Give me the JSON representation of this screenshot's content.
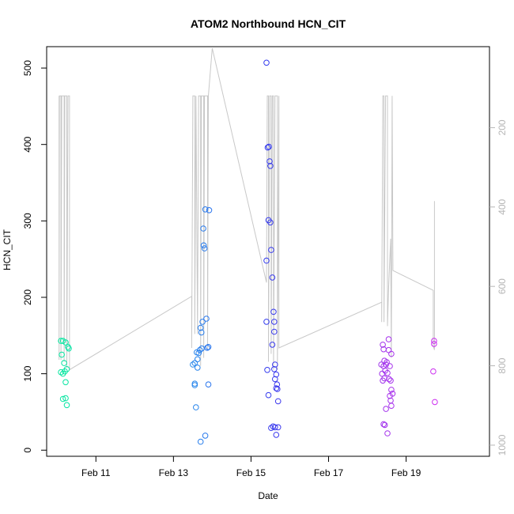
{
  "chart_data": {
    "type": "scatter",
    "title": "ATOM2 Northbound HCN_CIT",
    "xlabel": "Date",
    "ylabel": "HCN_CIT",
    "x_ticks": [
      "Feb 11",
      "Feb 13",
      "Feb 15",
      "Feb 17",
      "Feb 19"
    ],
    "x_tick_values": [
      11,
      13,
      15,
      17,
      19
    ],
    "y_ticks": [
      "0",
      "100",
      "200",
      "300",
      "400",
      "500"
    ],
    "y_tick_values": [
      0,
      100,
      200,
      300,
      400,
      500
    ],
    "xlim": [
      9.73,
      21.15
    ],
    "ylim": [
      -8,
      528
    ],
    "y2_axis": {
      "ticks": [
        "200",
        "400",
        "600",
        "800",
        "1000"
      ],
      "tick_values": [
        200,
        400,
        600,
        800,
        1000
      ],
      "lim": [
        -4,
        1028
      ],
      "reversed": true,
      "color": "#b5b5b5"
    },
    "grid": false,
    "legend": "none",
    "point_style": "open-circle",
    "color_scale": [
      "#00e89a",
      "#2fc3e8",
      "#1f3cf0",
      "#7c34e8",
      "#cf2ef0"
    ],
    "line_color": "#c8c8c8",
    "points": [
      {
        "x": 10.1,
        "y": 143
      },
      {
        "x": 10.15,
        "y": 143
      },
      {
        "x": 10.22,
        "y": 141
      },
      {
        "x": 10.28,
        "y": 135
      },
      {
        "x": 10.3,
        "y": 133
      },
      {
        "x": 10.12,
        "y": 125
      },
      {
        "x": 10.18,
        "y": 114
      },
      {
        "x": 10.25,
        "y": 106
      },
      {
        "x": 10.2,
        "y": 103
      },
      {
        "x": 10.1,
        "y": 102
      },
      {
        "x": 10.15,
        "y": 100
      },
      {
        "x": 10.22,
        "y": 89
      },
      {
        "x": 10.15,
        "y": 67
      },
      {
        "x": 10.22,
        "y": 68
      },
      {
        "x": 10.25,
        "y": 59
      },
      {
        "x": 13.5,
        "y": 112
      },
      {
        "x": 13.55,
        "y": 114
      },
      {
        "x": 13.6,
        "y": 128
      },
      {
        "x": 13.62,
        "y": 108
      },
      {
        "x": 13.65,
        "y": 127
      },
      {
        "x": 13.68,
        "y": 131
      },
      {
        "x": 13.7,
        "y": 160
      },
      {
        "x": 13.72,
        "y": 154
      },
      {
        "x": 13.73,
        "y": 133
      },
      {
        "x": 13.75,
        "y": 168
      },
      {
        "x": 13.77,
        "y": 290
      },
      {
        "x": 13.78,
        "y": 268
      },
      {
        "x": 13.8,
        "y": 264
      },
      {
        "x": 13.82,
        "y": 315
      },
      {
        "x": 13.85,
        "y": 172
      },
      {
        "x": 13.87,
        "y": 134
      },
      {
        "x": 13.9,
        "y": 135
      },
      {
        "x": 13.92,
        "y": 314
      },
      {
        "x": 13.55,
        "y": 85
      },
      {
        "x": 13.55,
        "y": 87
      },
      {
        "x": 13.9,
        "y": 86
      },
      {
        "x": 13.58,
        "y": 56
      },
      {
        "x": 13.82,
        "y": 19
      },
      {
        "x": 13.7,
        "y": 11
      },
      {
        "x": 13.62,
        "y": 119
      },
      {
        "x": 15.4,
        "y": 507
      },
      {
        "x": 15.43,
        "y": 396
      },
      {
        "x": 15.46,
        "y": 397
      },
      {
        "x": 15.48,
        "y": 378
      },
      {
        "x": 15.5,
        "y": 372
      },
      {
        "x": 15.45,
        "y": 301
      },
      {
        "x": 15.5,
        "y": 298
      },
      {
        "x": 15.52,
        "y": 262
      },
      {
        "x": 15.4,
        "y": 248
      },
      {
        "x": 15.55,
        "y": 226
      },
      {
        "x": 15.58,
        "y": 181
      },
      {
        "x": 15.4,
        "y": 168
      },
      {
        "x": 15.6,
        "y": 168
      },
      {
        "x": 15.6,
        "y": 155
      },
      {
        "x": 15.55,
        "y": 138
      },
      {
        "x": 15.62,
        "y": 112
      },
      {
        "x": 15.6,
        "y": 106
      },
      {
        "x": 15.42,
        "y": 105
      },
      {
        "x": 15.65,
        "y": 99
      },
      {
        "x": 15.62,
        "y": 93
      },
      {
        "x": 15.67,
        "y": 86
      },
      {
        "x": 15.65,
        "y": 81
      },
      {
        "x": 15.68,
        "y": 80
      },
      {
        "x": 15.45,
        "y": 72
      },
      {
        "x": 15.7,
        "y": 64
      },
      {
        "x": 15.52,
        "y": 29
      },
      {
        "x": 15.57,
        "y": 31
      },
      {
        "x": 15.62,
        "y": 30
      },
      {
        "x": 15.7,
        "y": 30
      },
      {
        "x": 15.65,
        "y": 20
      },
      {
        "x": 18.4,
        "y": 138
      },
      {
        "x": 18.42,
        "y": 132
      },
      {
        "x": 18.55,
        "y": 145
      },
      {
        "x": 18.55,
        "y": 131
      },
      {
        "x": 18.62,
        "y": 126
      },
      {
        "x": 18.44,
        "y": 117
      },
      {
        "x": 18.5,
        "y": 115
      },
      {
        "x": 18.36,
        "y": 112
      },
      {
        "x": 18.42,
        "y": 110
      },
      {
        "x": 18.48,
        "y": 112
      },
      {
        "x": 18.58,
        "y": 110
      },
      {
        "x": 18.46,
        "y": 104
      },
      {
        "x": 18.52,
        "y": 101
      },
      {
        "x": 18.38,
        "y": 100
      },
      {
        "x": 18.44,
        "y": 94
      },
      {
        "x": 18.56,
        "y": 93
      },
      {
        "x": 18.6,
        "y": 91
      },
      {
        "x": 18.4,
        "y": 91
      },
      {
        "x": 18.62,
        "y": 79
      },
      {
        "x": 18.65,
        "y": 74
      },
      {
        "x": 18.58,
        "y": 71
      },
      {
        "x": 18.6,
        "y": 65
      },
      {
        "x": 18.48,
        "y": 54
      },
      {
        "x": 18.62,
        "y": 58
      },
      {
        "x": 18.42,
        "y": 34
      },
      {
        "x": 18.45,
        "y": 33
      },
      {
        "x": 18.52,
        "y": 22
      },
      {
        "x": 19.72,
        "y": 143
      },
      {
        "x": 19.72,
        "y": 139
      },
      {
        "x": 19.7,
        "y": 103
      },
      {
        "x": 19.74,
        "y": 63
      }
    ],
    "y2_line": [
      [
        10.05,
        120
      ],
      [
        10.05,
        785
      ],
      [
        10.06,
        120
      ],
      [
        10.1,
        120
      ],
      [
        10.1,
        785
      ],
      [
        10.12,
        120
      ],
      [
        10.18,
        120
      ],
      [
        10.18,
        790
      ],
      [
        10.2,
        120
      ],
      [
        10.25,
        120
      ],
      [
        10.25,
        805
      ],
      [
        10.28,
        120
      ],
      [
        10.32,
        120
      ],
      [
        10.32,
        810
      ],
      [
        13.47,
        625
      ],
      [
        13.47,
        755
      ],
      [
        13.5,
        120
      ],
      [
        13.55,
        120
      ],
      [
        13.55,
        720
      ],
      [
        13.58,
        120
      ],
      [
        13.62,
        720
      ],
      [
        13.65,
        120
      ],
      [
        13.7,
        120
      ],
      [
        13.7,
        800
      ],
      [
        13.72,
        120
      ],
      [
        13.78,
        120
      ],
      [
        13.78,
        780
      ],
      [
        13.8,
        120
      ],
      [
        13.88,
        120
      ],
      [
        13.88,
        760
      ],
      [
        13.9,
        120
      ],
      [
        14.0,
        0
      ],
      [
        15.4,
        590
      ],
      [
        15.42,
        120
      ],
      [
        15.45,
        120
      ],
      [
        15.45,
        790
      ],
      [
        15.48,
        120
      ],
      [
        15.52,
        120
      ],
      [
        15.52,
        770
      ],
      [
        15.55,
        120
      ],
      [
        15.58,
        120
      ],
      [
        15.58,
        810
      ],
      [
        15.62,
        120
      ],
      [
        15.68,
        120
      ],
      [
        15.68,
        810
      ],
      [
        15.72,
        120
      ],
      [
        15.72,
        755
      ],
      [
        18.37,
        640
      ],
      [
        18.37,
        690
      ],
      [
        18.4,
        120
      ],
      [
        18.43,
        120
      ],
      [
        18.43,
        690
      ],
      [
        18.47,
        120
      ],
      [
        18.52,
        120
      ],
      [
        18.52,
        700
      ],
      [
        18.55,
        600
      ],
      [
        18.6,
        480
      ],
      [
        18.62,
        780
      ],
      [
        18.64,
        120
      ],
      [
        18.66,
        560
      ],
      [
        19.7,
        610
      ],
      [
        19.7,
        750
      ],
      [
        19.73,
        760
      ],
      [
        19.73,
        385
      ]
    ]
  }
}
